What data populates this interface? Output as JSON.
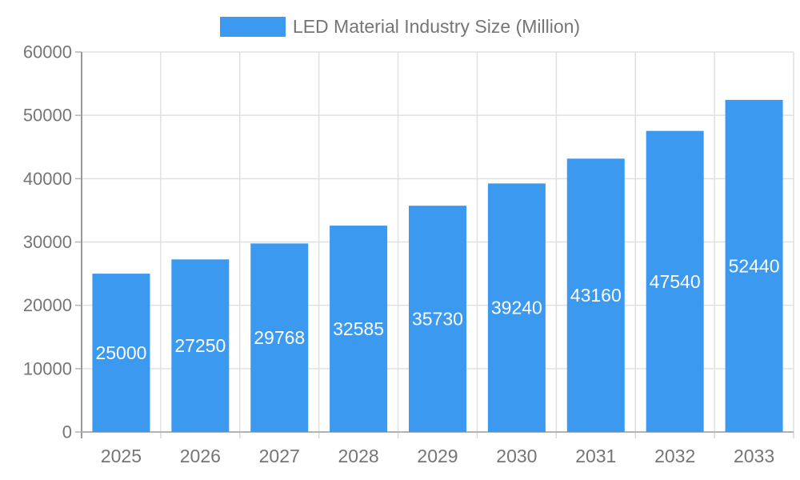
{
  "chart_data": {
    "type": "bar",
    "title": "LED Material Industry Size (Million)",
    "categories": [
      "2025",
      "2026",
      "2027",
      "2028",
      "2029",
      "2030",
      "2031",
      "2032",
      "2033"
    ],
    "values": [
      25000,
      27250,
      29768,
      32585,
      35730,
      39240,
      43160,
      47540,
      52440
    ],
    "xlabel": "",
    "ylabel": "",
    "ylim": [
      0,
      60000
    ],
    "yticks": [
      0,
      10000,
      20000,
      30000,
      40000,
      50000,
      60000
    ],
    "grid": true,
    "legend_position": "top",
    "bar_color": "#3B99F0",
    "bar_label_color": "#FFFFFF",
    "axis_text_color": "#757575",
    "grid_color": "#E0E0E0",
    "x_axis_line_color": "#B3B3B3",
    "y_axis_line_color": "#999999",
    "boundary_tick_color": "#D9D9D9",
    "y_tick_color": "#B3B3B3"
  }
}
